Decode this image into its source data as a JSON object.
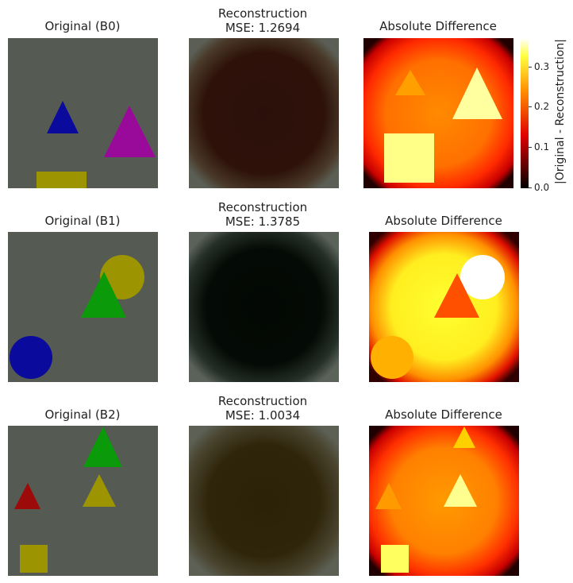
{
  "rows": [
    {
      "orig_title": "Original (B0)",
      "recon_title": "Reconstruction",
      "mse": "MSE: 1.2694",
      "diff_title": "Absolute Difference"
    },
    {
      "orig_title": "Original (B1)",
      "recon_title": "Reconstruction",
      "mse": "MSE: 1.3785",
      "diff_title": "Absolute Difference"
    },
    {
      "orig_title": "Original (B2)",
      "recon_title": "Reconstruction",
      "mse": "MSE: 1.0034",
      "diff_title": "Absolute Difference"
    }
  ],
  "colorbar": {
    "label": "|Original - Reconstruction|",
    "ticks": [
      "0.0",
      "0.1",
      "0.2",
      "0.3"
    ],
    "colormap": "hot"
  },
  "colors": {
    "background_gray": "#555a52",
    "blue": "#0a0a9c",
    "magenta": "#9a0a9a",
    "olive": "#9c9400",
    "green": "#0a9a0a",
    "red": "#9c0a0a"
  }
}
